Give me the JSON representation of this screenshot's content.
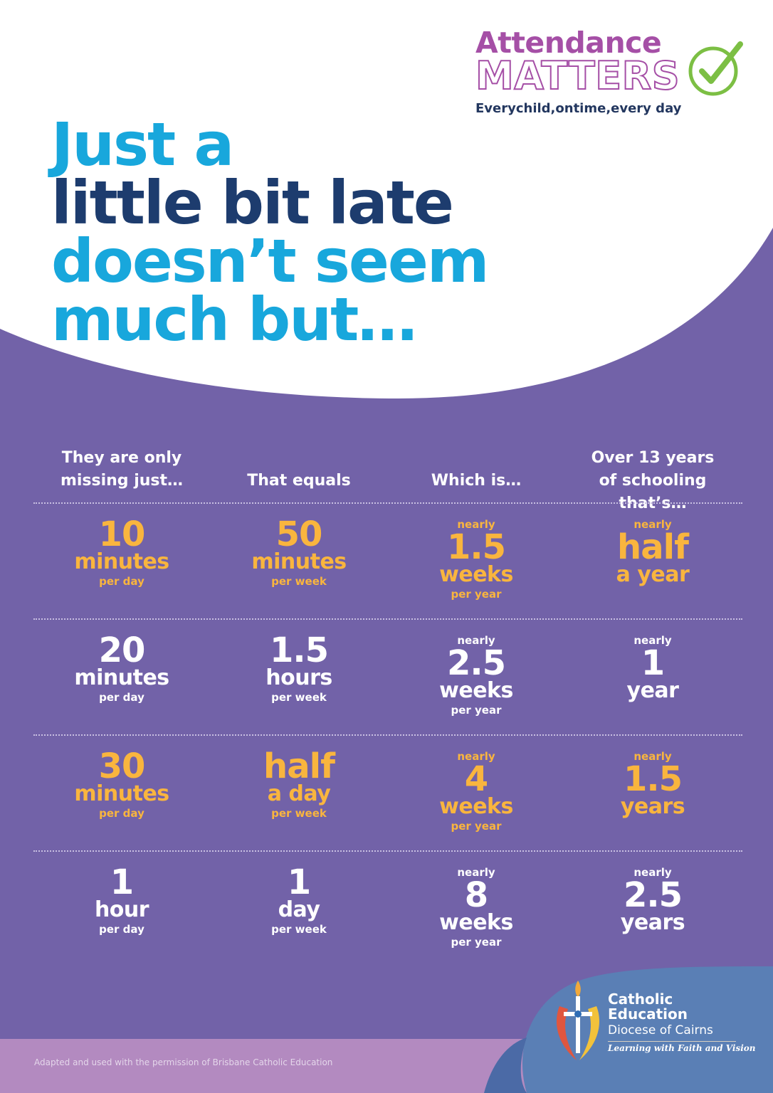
{
  "logo": {
    "line1": "Attendance",
    "line2": "MATTERS",
    "tagline": "Everychild,ontime,every day",
    "icon": "check-icon",
    "colors": {
      "purple": "#a54fa6",
      "green": "#7cbf44",
      "navy": "#23375f"
    }
  },
  "headline": {
    "line1": "Just a",
    "line2": "little bit late",
    "line3": "doesn’t seem",
    "line4": "much but…"
  },
  "table": {
    "headers": [
      {
        "line1": "They are only",
        "line2": "missing just…"
      },
      {
        "line1": "",
        "line2": "That equals"
      },
      {
        "line1": "",
        "line2": "Which is…"
      },
      {
        "line1": "Over 13 years",
        "line2": "of schooling that’s…"
      }
    ],
    "rows": [
      {
        "color": "gold",
        "cells": [
          {
            "pre": "",
            "num": "10",
            "unit": "minutes",
            "sub": "per day"
          },
          {
            "pre": "",
            "num": "50",
            "unit": "minutes",
            "sub": "per week"
          },
          {
            "pre": "nearly",
            "num": "1.5",
            "unit": "weeks",
            "sub": "per year"
          },
          {
            "pre": "nearly",
            "num": "half",
            "unit": "a year",
            "sub": ""
          }
        ]
      },
      {
        "color": "white",
        "cells": [
          {
            "pre": "",
            "num": "20",
            "unit": "minutes",
            "sub": "per day"
          },
          {
            "pre": "",
            "num": "1.5",
            "unit": "hours",
            "sub": "per week"
          },
          {
            "pre": "nearly",
            "num": "2.5",
            "unit": "weeks",
            "sub": "per year"
          },
          {
            "pre": "nearly",
            "num": "1",
            "unit": "year",
            "sub": ""
          }
        ]
      },
      {
        "color": "gold",
        "cells": [
          {
            "pre": "",
            "num": "30",
            "unit": "minutes",
            "sub": "per day"
          },
          {
            "pre": "",
            "num": "half",
            "unit": "a day",
            "sub": "per week"
          },
          {
            "pre": "nearly",
            "num": "4",
            "unit": "weeks",
            "sub": "per year"
          },
          {
            "pre": "nearly",
            "num": "1.5",
            "unit": "years",
            "sub": ""
          }
        ]
      },
      {
        "color": "white",
        "cells": [
          {
            "pre": "",
            "num": "1",
            "unit": "hour",
            "sub": "per day"
          },
          {
            "pre": "",
            "num": "1",
            "unit": "day",
            "sub": "per week"
          },
          {
            "pre": "nearly",
            "num": "8",
            "unit": "weeks",
            "sub": "per year"
          },
          {
            "pre": "nearly",
            "num": "2.5",
            "unit": "years",
            "sub": ""
          }
        ]
      }
    ]
  },
  "footer": {
    "credit": "Adapted and used with the permission of Brisbane Catholic Education",
    "org_line1": "Catholic",
    "org_line2": "Education",
    "org_diocese": "Diocese of Cairns",
    "org_motto": "Learning with Faith and Vision"
  },
  "colors": {
    "background_purple": "#7262a8",
    "headline_blue": "#18a7dc",
    "headline_navy": "#1d3c6e",
    "highlight_gold": "#f9b53e",
    "footer_lilac": "#b38ac0",
    "footer_blue": "#5a7fb5"
  }
}
